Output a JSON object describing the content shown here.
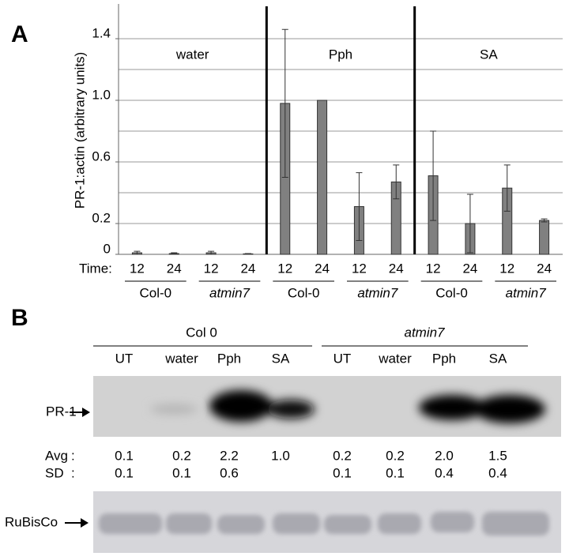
{
  "chart_data": {
    "type": "bar",
    "panel_label": "A",
    "y_label": "PR-1:actin (arbitrary units)",
    "x_label": "Time:",
    "categories": [
      "12",
      "24",
      "12",
      "24",
      "12",
      "24",
      "12",
      "24",
      "12",
      "24",
      "12",
      "24"
    ],
    "values": [
      0.01,
      0.005,
      0.01,
      0.003,
      0.98,
      1.0,
      0.31,
      0.47,
      0.51,
      0.2,
      0.43,
      0.22
    ],
    "errors": [
      0.01,
      0.005,
      0.01,
      0.002,
      0.48,
      0.0,
      0.22,
      0.11,
      0.29,
      0.19,
      0.15,
      0.01
    ],
    "color": "#808080",
    "genotypes": [
      "Col-0",
      "atmin7",
      "Col-0",
      "atmin7",
      "Col-0",
      "atmin7"
    ],
    "treatments": [
      "water",
      "Pph",
      "SA"
    ],
    "ylim": [
      0,
      1.6
    ],
    "yticks": [
      0,
      0.2,
      0.6,
      {
        "value": 1,
        "label": "1.0"
      },
      1.4
    ],
    "ygrid": [
      0.2,
      0.4,
      0.6,
      0.8,
      1,
      1.2,
      1.4
    ]
  },
  "blot": {
    "panel_label": "B",
    "groups": [
      "Col 0",
      "atmin7"
    ],
    "lanes": [
      "UT",
      "water",
      "Pph",
      "SA",
      "UT",
      "water",
      "Pph",
      "SA"
    ],
    "bands": [
      "PR-1",
      "RuBisCo"
    ],
    "avg_label": "Avg",
    "sd_label": "SD",
    "separator": ":",
    "avg": [
      "0.1",
      "0.2",
      "2.2",
      "1.0",
      "0.2",
      "0.2",
      "2.0",
      "1.5"
    ],
    "sd": [
      "0.1",
      "0.1",
      "0.6",
      null,
      "0.1",
      "0.1",
      "0.4",
      "0.4"
    ]
  }
}
